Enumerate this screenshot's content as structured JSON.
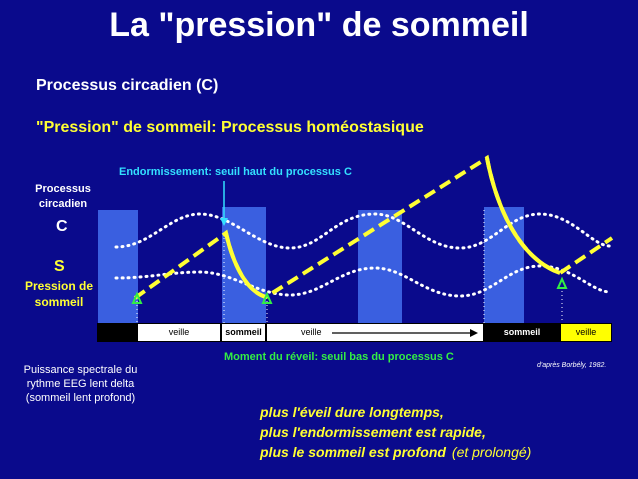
{
  "title": "La \"pression\" de sommeil",
  "legend": {
    "circadian": "Processus circadien (C)",
    "homeostatic": "\"Pression\" de sommeil:  Processus homéostasique"
  },
  "labels": {
    "endormissement": "Endormissement: seuil haut du processus C",
    "processus_circadien": "Processus circadien",
    "c": "C",
    "s": "S",
    "pression_de_sommeil": "Pression de sommeil",
    "reveil": "Moment du réveil: seuil bas du processus C",
    "borbely": "d'après Borbély, 1982.",
    "puissance": "Puissance spectrale du rythme EEG lent delta (sommeil lent profond)"
  },
  "timeline": {
    "veille_1": "veille",
    "sommeil_1": "sommeil",
    "veille_2": "veille",
    "sommeil_2": "sommeil",
    "veille_3": "veille"
  },
  "conclusion": {
    "line1": "plus l'éveil dure longtemps,",
    "line2": "plus l'endormissement est rapide,",
    "line3": "plus le sommeil est profond",
    "line3_extra": "(et prolongé)"
  },
  "colors": {
    "background": "#0a0a8c",
    "sleep_band": "#3a5fe0",
    "curve_s": "#ffff33",
    "circadian_dots": "#ffffff",
    "threshold_markers": "#33ee44",
    "endormissement_arrow": "#33e0ff"
  }
}
